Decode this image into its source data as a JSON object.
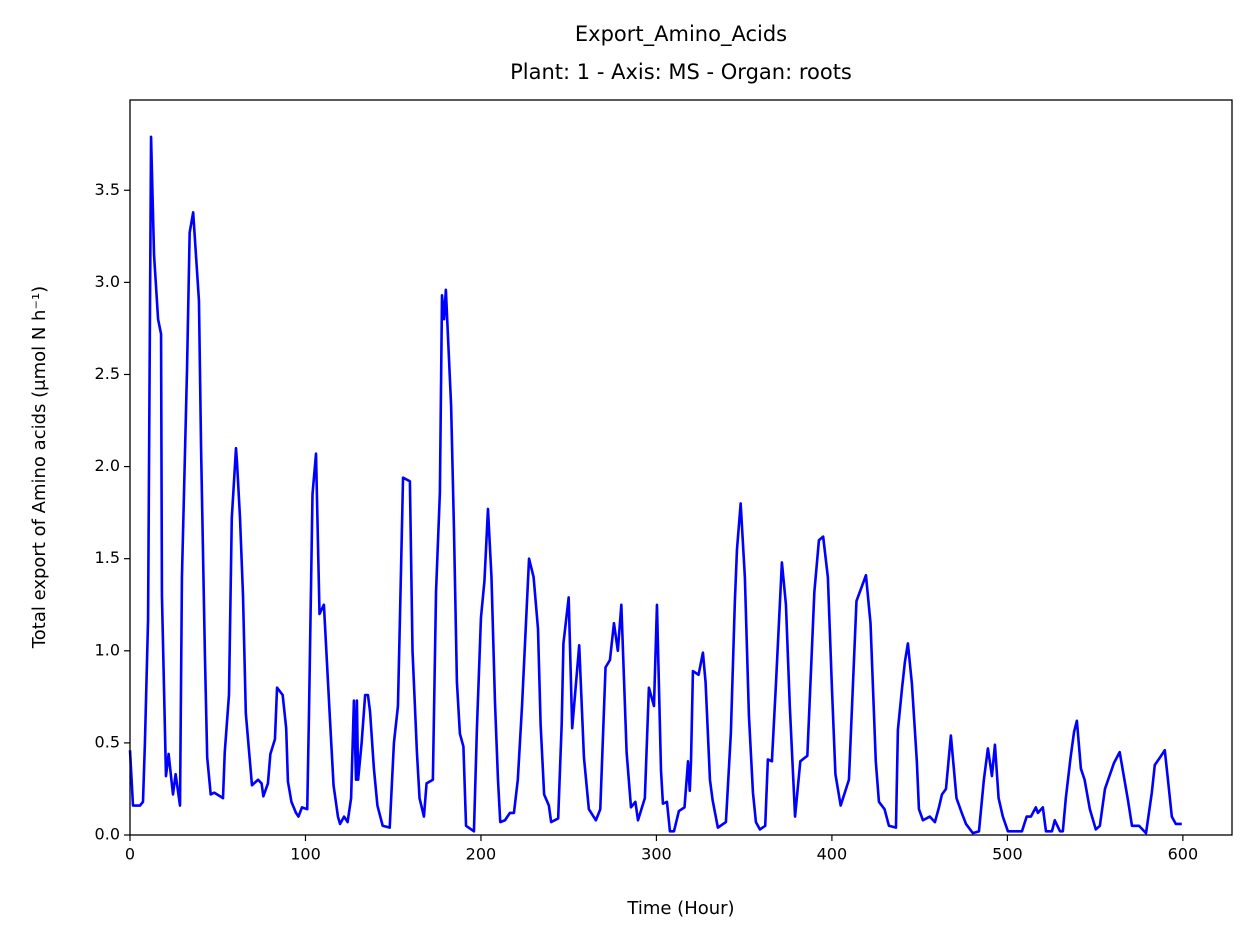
{
  "chart_data": {
    "type": "line",
    "title": "Export_Amino_Acids",
    "subtitle": "Plant: 1 - Axis: MS - Organ: roots",
    "xlabel": "Time (Hour)",
    "ylabel": "Total export of Amino acids (μmol N h⁻¹)",
    "color": "#0000ff",
    "xlim": [
      0,
      628
    ],
    "ylim": [
      0,
      3.99
    ],
    "xticks": [
      0,
      100,
      200,
      300,
      400,
      500,
      600
    ],
    "yticks": [
      {
        "value": 0,
        "label": "0.0"
      },
      0.5,
      {
        "value": 1,
        "label": "1.0"
      },
      1.5,
      {
        "value": 2,
        "label": "2.0"
      },
      2.5,
      {
        "value": 3,
        "label": "3.0"
      },
      3.5
    ],
    "x": [
      0,
      1.7,
      5.7,
      7.4,
      8.5,
      10.3,
      12,
      13.7,
      16,
      17.7,
      18.2,
      20.5,
      22,
      24.5,
      26,
      28.5,
      29.6,
      32.5,
      34,
      36,
      39.3,
      40.5,
      42.7,
      44,
      46,
      48,
      53,
      54,
      56.4,
      58,
      60.4,
      61,
      62.7,
      64.4,
      66,
      69.5,
      73,
      75,
      76,
      78.6,
      80,
      82.6,
      83.8,
      87,
      89,
      90,
      92,
      94.6,
      96,
      98,
      101,
      102,
      104,
      106,
      108,
      110.5,
      114,
      116,
      118.5,
      119.7,
      122,
      124,
      126,
      127.6,
      128.8,
      129.3,
      130,
      132,
      134,
      135.6,
      136.8,
      139,
      141,
      144,
      148,
      150.4,
      152.7,
      154,
      155.6,
      159.5,
      161,
      163.5,
      165,
      167.5,
      169,
      172.6,
      174.4,
      176.6,
      177.8,
      179,
      180,
      183,
      184.6,
      186.3,
      188,
      190,
      191.5,
      196,
      197.7,
      200,
      202,
      204,
      206,
      208,
      209.7,
      211,
      213.7,
      216.5,
      218.8,
      221,
      223.4,
      227.4,
      230,
      232.5,
      234,
      236,
      238.7,
      240,
      244,
      246,
      247,
      250,
      252,
      256,
      258.7,
      261.5,
      265.5,
      268,
      271,
      273.5,
      275.8,
      278,
      280,
      283,
      285.5,
      288,
      289.5,
      293.4,
      295.7,
      298.6,
      300.3,
      302.6,
      303.7,
      306,
      307.7,
      310,
      312.8,
      316,
      318,
      319,
      319.7,
      320.8,
      324,
      326.5,
      328,
      330.5,
      332,
      335,
      339.6,
      342.4,
      344.7,
      345.9,
      348,
      350.4,
      352.7,
      355,
      356.7,
      359,
      362,
      363.5,
      365.8,
      368,
      371.5,
      373.8,
      376,
      379,
      382,
      386,
      390,
      392.6,
      395,
      397.7,
      400,
      402,
      405,
      409.7,
      414,
      419.4,
      422,
      425,
      426.8,
      430,
      432.5,
      436.5,
      437.6,
      440,
      441.6,
      443.3,
      445.6,
      448.4,
      449.6,
      451.9,
      455.8,
      458.7,
      461,
      462.7,
      465,
      467.8,
      471,
      474,
      476.4,
      480.3,
      483.8,
      486.6,
      488.9,
      491.2,
      492.9,
      495,
      497.4,
      500.3,
      508.3,
      511,
      513.4,
      516.2,
      517.4,
      520.2,
      522,
      525.4,
      527,
      530,
      531.6,
      533.3,
      536,
      538,
      539.6,
      541.9,
      544,
      547,
      550.4,
      552.7,
      555.6,
      560.7,
      564,
      565.8,
      568.7,
      571,
      575,
      579,
      582.3,
      584,
      586.9,
      589.7,
      591.5,
      593.7,
      596,
      599.4
    ],
    "values": [
      0.46,
      0.16,
      0.16,
      0.18,
      0.5,
      1.17,
      3.79,
      3.15,
      2.8,
      2.72,
      1.3,
      0.32,
      0.44,
      0.22,
      0.33,
      0.16,
      1.4,
      2.53,
      3.27,
      3.38,
      2.9,
      2.1,
      0.97,
      0.42,
      0.22,
      0.23,
      0.2,
      0.45,
      0.76,
      1.72,
      2.1,
      2.02,
      1.72,
      1.3,
      0.66,
      0.27,
      0.3,
      0.28,
      0.21,
      0.28,
      0.44,
      0.52,
      0.8,
      0.76,
      0.58,
      0.29,
      0.18,
      0.12,
      0.1,
      0.15,
      0.14,
      0.66,
      1.85,
      2.07,
      1.2,
      1.25,
      0.62,
      0.27,
      0.1,
      0.06,
      0.1,
      0.07,
      0.2,
      0.73,
      0.3,
      0.73,
      0.3,
      0.5,
      0.76,
      0.76,
      0.67,
      0.36,
      0.16,
      0.05,
      0.04,
      0.5,
      0.7,
      1.25,
      1.94,
      1.92,
      1.0,
      0.45,
      0.2,
      0.1,
      0.28,
      0.3,
      1.32,
      1.86,
      2.93,
      2.8,
      2.96,
      2.33,
      1.67,
      0.83,
      0.55,
      0.48,
      0.05,
      0.02,
      0.58,
      1.18,
      1.38,
      1.77,
      1.4,
      0.72,
      0.3,
      0.07,
      0.08,
      0.12,
      0.12,
      0.3,
      0.7,
      1.5,
      1.4,
      1.12,
      0.6,
      0.22,
      0.16,
      0.07,
      0.09,
      0.6,
      1.04,
      1.29,
      0.58,
      1.03,
      0.42,
      0.14,
      0.08,
      0.14,
      0.91,
      0.95,
      1.15,
      1.0,
      1.25,
      0.45,
      0.15,
      0.18,
      0.08,
      0.2,
      0.8,
      0.7,
      1.25,
      0.35,
      0.17,
      0.18,
      0.02,
      0.02,
      0.13,
      0.15,
      0.4,
      0.24,
      0.4,
      0.89,
      0.87,
      0.99,
      0.83,
      0.3,
      0.19,
      0.04,
      0.07,
      0.55,
      1.27,
      1.55,
      1.8,
      1.4,
      0.65,
      0.23,
      0.07,
      0.03,
      0.05,
      0.41,
      0.4,
      0.8,
      1.48,
      1.25,
      0.7,
      0.1,
      0.4,
      0.43,
      1.32,
      1.6,
      1.62,
      1.4,
      0.8,
      0.33,
      0.16,
      0.3,
      1.27,
      1.41,
      1.15,
      0.4,
      0.18,
      0.14,
      0.05,
      0.04,
      0.57,
      0.8,
      0.94,
      1.04,
      0.82,
      0.4,
      0.14,
      0.08,
      0.1,
      0.07,
      0.15,
      0.22,
      0.25,
      0.54,
      0.2,
      0.12,
      0.06,
      0.01,
      0.02,
      0.3,
      0.47,
      0.32,
      0.49,
      0.2,
      0.1,
      0.02,
      0.02,
      0.1,
      0.1,
      0.15,
      0.12,
      0.15,
      0.02,
      0.02,
      0.08,
      0.02,
      0.02,
      0.2,
      0.42,
      0.56,
      0.62,
      0.36,
      0.3,
      0.14,
      0.03,
      0.05,
      0.25,
      0.39,
      0.45,
      0.35,
      0.19,
      0.05,
      0.05,
      0.01,
      0.23,
      0.38,
      0.42,
      0.46,
      0.3,
      0.1,
      0.06,
      0.06
    ]
  }
}
